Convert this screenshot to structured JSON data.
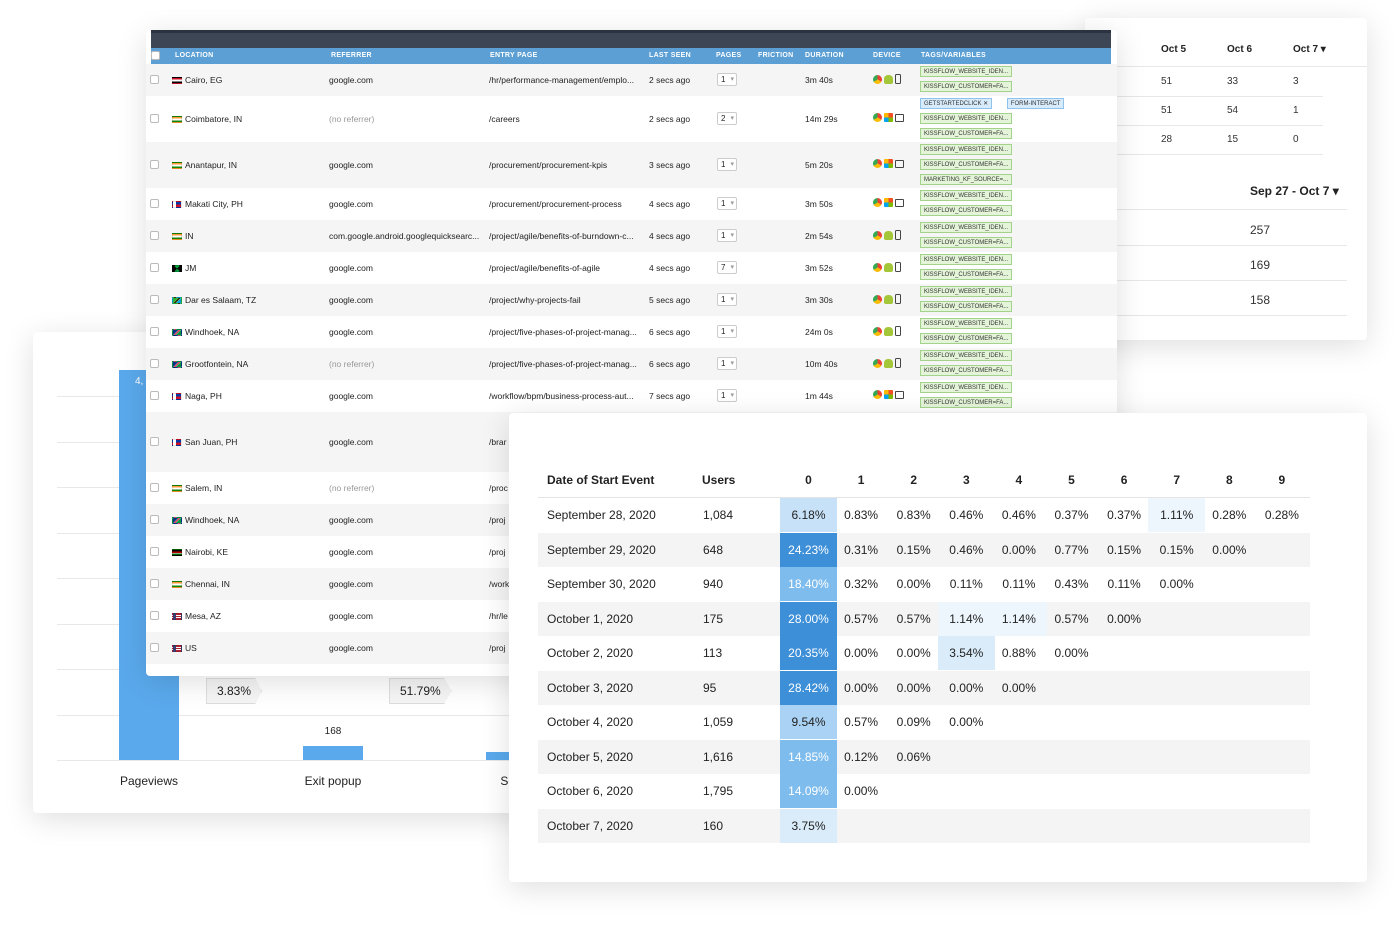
{
  "dates_card": {
    "headers": [
      "Oct 5",
      "Oct 6",
      "Oct 7 ▾"
    ],
    "rows": [
      [
        "51",
        "33",
        "3"
      ],
      [
        "51",
        "54",
        "1"
      ],
      [
        "28",
        "15",
        "0"
      ]
    ],
    "range_label": "Sep 27 - Oct 7 ▾",
    "range_values": [
      "257",
      "169",
      "158"
    ]
  },
  "funnel": {
    "bars": [
      {
        "label": "Pageviews",
        "value_text": "4,",
        "fraction": 0.98
      },
      {
        "label": "Exit popup",
        "value_text": "168",
        "fraction": 0.036
      },
      {
        "label": "Subm",
        "value_text": "",
        "fraction": 0.019
      }
    ],
    "conversions": [
      "3.83%",
      "51.79%"
    ]
  },
  "sessions": {
    "headers": [
      "LOCATION",
      "REFERRER",
      "ENTRY PAGE",
      "LAST SEEN",
      "PAGES",
      "FRICTION",
      "DURATION",
      "DEVICE",
      "TAGS/VARIABLES"
    ],
    "rows": [
      {
        "flag": "eg",
        "location": "Cairo, EG",
        "referrer": "google.com",
        "entry": "/hr/performance-management/emplo...",
        "seen": "2 secs ago",
        "pages": "1",
        "duration": "3m 40s",
        "device": [
          "chrome",
          "android",
          "phone"
        ],
        "tags": [
          [
            "KISSFLOW_WEBSITE_IDEN..."
          ],
          [
            "KISSFLOW_CUSTOMER=FA..."
          ]
        ]
      },
      {
        "flag": "in",
        "location": "Coimbatore, IN",
        "referrer": "(no referrer)",
        "entry": "/careers",
        "seen": "2 secs ago",
        "pages": "2",
        "duration": "14m 29s",
        "device": [
          "chrome",
          "win",
          "desktop"
        ],
        "tags": [
          [
            "GETSTARTEDCLICK ✕",
            "FORM-INTERACT"
          ],
          [
            "KISSFLOW_WEBSITE_IDEN..."
          ],
          [
            "KISSFLOW_CUSTOMER=FA..."
          ]
        ]
      },
      {
        "flag": "in",
        "location": "Anantapur, IN",
        "referrer": "google.com",
        "entry": "/procurement/procurement-kpis",
        "seen": "3 secs ago",
        "pages": "1",
        "duration": "5m 20s",
        "device": [
          "chrome",
          "win",
          "desktop"
        ],
        "tags": [
          [
            "KISSFLOW_WEBSITE_IDEN..."
          ],
          [
            "KISSFLOW_CUSTOMER=FA..."
          ],
          [
            "MARKETING_KF_SOURCE=..."
          ]
        ]
      },
      {
        "flag": "ph",
        "location": "Makati City, PH",
        "referrer": "google.com",
        "entry": "/procurement/procurement-process",
        "seen": "4 secs ago",
        "pages": "1",
        "duration": "3m 50s",
        "device": [
          "chrome",
          "win",
          "desktop"
        ],
        "tags": [
          [
            "KISSFLOW_WEBSITE_IDEN..."
          ],
          [
            "KISSFLOW_CUSTOMER=FA..."
          ]
        ]
      },
      {
        "flag": "in",
        "location": "IN",
        "referrer": "com.google.android.googlequicksearc...",
        "entry": "/project/agile/benefits-of-burndown-c...",
        "seen": "4 secs ago",
        "pages": "1",
        "duration": "2m 54s",
        "device": [
          "chrome",
          "android",
          "phone"
        ],
        "tags": [
          [
            "KISSFLOW_WEBSITE_IDEN..."
          ],
          [
            "KISSFLOW_CUSTOMER=FA..."
          ]
        ]
      },
      {
        "flag": "jm",
        "location": "JM",
        "referrer": "google.com",
        "entry": "/project/agile/benefits-of-agile",
        "seen": "4 secs ago",
        "pages": "7",
        "duration": "3m 52s",
        "device": [
          "chrome",
          "android",
          "phone"
        ],
        "tags": [
          [
            "KISSFLOW_WEBSITE_IDEN..."
          ],
          [
            "KISSFLOW_CUSTOMER=FA..."
          ]
        ]
      },
      {
        "flag": "tz",
        "location": "Dar es Salaam, TZ",
        "referrer": "google.com",
        "entry": "/project/why-projects-fail",
        "seen": "5 secs ago",
        "pages": "1",
        "duration": "3m 30s",
        "device": [
          "chrome",
          "android",
          "phone"
        ],
        "tags": [
          [
            "KISSFLOW_WEBSITE_IDEN..."
          ],
          [
            "KISSFLOW_CUSTOMER=FA..."
          ]
        ]
      },
      {
        "flag": "na",
        "location": "Windhoek, NA",
        "referrer": "google.com",
        "entry": "/project/five-phases-of-project-manag...",
        "seen": "6 secs ago",
        "pages": "1",
        "duration": "24m 0s",
        "device": [
          "chrome",
          "android",
          "phone"
        ],
        "tags": [
          [
            "KISSFLOW_WEBSITE_IDEN..."
          ],
          [
            "KISSFLOW_CUSTOMER=FA..."
          ]
        ]
      },
      {
        "flag": "na",
        "location": "Grootfontein, NA",
        "referrer": "(no referrer)",
        "entry": "/project/five-phases-of-project-manag...",
        "seen": "6 secs ago",
        "pages": "1",
        "duration": "10m 40s",
        "device": [
          "chrome",
          "android",
          "phone"
        ],
        "tags": [
          [
            "KISSFLOW_WEBSITE_IDEN..."
          ],
          [
            "KISSFLOW_CUSTOMER=FA..."
          ]
        ]
      },
      {
        "flag": "ph",
        "location": "Naga, PH",
        "referrer": "google.com",
        "entry": "/workflow/bpm/business-process-aut...",
        "seen": "7 secs ago",
        "pages": "1",
        "duration": "1m 44s",
        "device": [
          "chrome",
          "win",
          "desktop"
        ],
        "tags": [
          [
            "KISSFLOW_WEBSITE_IDEN..."
          ],
          [
            "KISSFLOW_CUSTOMER=FA..."
          ]
        ]
      },
      {
        "flag": "ph",
        "location": "San Juan, PH",
        "referrer": "google.com",
        "entry": "/brar",
        "seen": "",
        "pages": "",
        "duration": "",
        "device": [],
        "tags": []
      },
      {
        "flag": "in",
        "location": "Salem, IN",
        "referrer": "(no referrer)",
        "entry": "/proc",
        "seen": "",
        "pages": "",
        "duration": "",
        "device": [],
        "tags": []
      },
      {
        "flag": "na",
        "location": "Windhoek, NA",
        "referrer": "google.com",
        "entry": "/proj",
        "seen": "",
        "pages": "",
        "duration": "",
        "device": [],
        "tags": []
      },
      {
        "flag": "ke",
        "location": "Nairobi, KE",
        "referrer": "google.com",
        "entry": "/proj",
        "seen": "",
        "pages": "",
        "duration": "",
        "device": [],
        "tags": []
      },
      {
        "flag": "in",
        "location": "Chennai, IN",
        "referrer": "google.com",
        "entry": "/work",
        "seen": "",
        "pages": "",
        "duration": "",
        "device": [],
        "tags": []
      },
      {
        "flag": "us",
        "location": "Mesa, AZ",
        "referrer": "google.com",
        "entry": "/hr/le",
        "seen": "",
        "pages": "",
        "duration": "",
        "device": [],
        "tags": []
      },
      {
        "flag": "us",
        "location": "US",
        "referrer": "google.com",
        "entry": "/proj",
        "seen": "",
        "pages": "",
        "duration": "",
        "device": [],
        "tags": []
      }
    ]
  },
  "cohort": {
    "date_header": "Date of Start Event",
    "users_header": "Users",
    "period_headers": [
      "0",
      "1",
      "2",
      "3",
      "4",
      "5",
      "6",
      "7",
      "8",
      "9"
    ],
    "rows": [
      {
        "date": "September 28, 2020",
        "users": "1,084",
        "values": [
          "6.18%",
          "0.83%",
          "0.83%",
          "0.46%",
          "0.46%",
          "0.37%",
          "0.37%",
          "1.11%",
          "0.28%",
          "0.28%"
        ]
      },
      {
        "date": "September 29, 2020",
        "users": "648",
        "values": [
          "24.23%",
          "0.31%",
          "0.15%",
          "0.46%",
          "0.00%",
          "0.77%",
          "0.15%",
          "0.15%",
          "0.00%"
        ]
      },
      {
        "date": "September 30, 2020",
        "users": "940",
        "values": [
          "18.40%",
          "0.32%",
          "0.00%",
          "0.11%",
          "0.11%",
          "0.43%",
          "0.11%",
          "0.00%"
        ]
      },
      {
        "date": "October 1, 2020",
        "users": "175",
        "values": [
          "28.00%",
          "0.57%",
          "0.57%",
          "1.14%",
          "1.14%",
          "0.57%",
          "0.00%"
        ]
      },
      {
        "date": "October 2, 2020",
        "users": "113",
        "values": [
          "20.35%",
          "0.00%",
          "0.00%",
          "3.54%",
          "0.88%",
          "0.00%"
        ]
      },
      {
        "date": "October 3, 2020",
        "users": "95",
        "values": [
          "28.42%",
          "0.00%",
          "0.00%",
          "0.00%",
          "0.00%"
        ]
      },
      {
        "date": "October 4, 2020",
        "users": "1,059",
        "values": [
          "9.54%",
          "0.57%",
          "0.09%",
          "0.00%"
        ]
      },
      {
        "date": "October 5, 2020",
        "users": "1,616",
        "values": [
          "14.85%",
          "0.12%",
          "0.06%"
        ]
      },
      {
        "date": "October 6, 2020",
        "users": "1,795",
        "values": [
          "14.09%",
          "0.00%"
        ]
      },
      {
        "date": "October 7, 2020",
        "users": "160",
        "values": [
          "3.75%"
        ]
      }
    ]
  },
  "colors": {
    "accent": "#5aa9ec",
    "header": "#5b9fd4",
    "topbar": "#3d4654"
  }
}
